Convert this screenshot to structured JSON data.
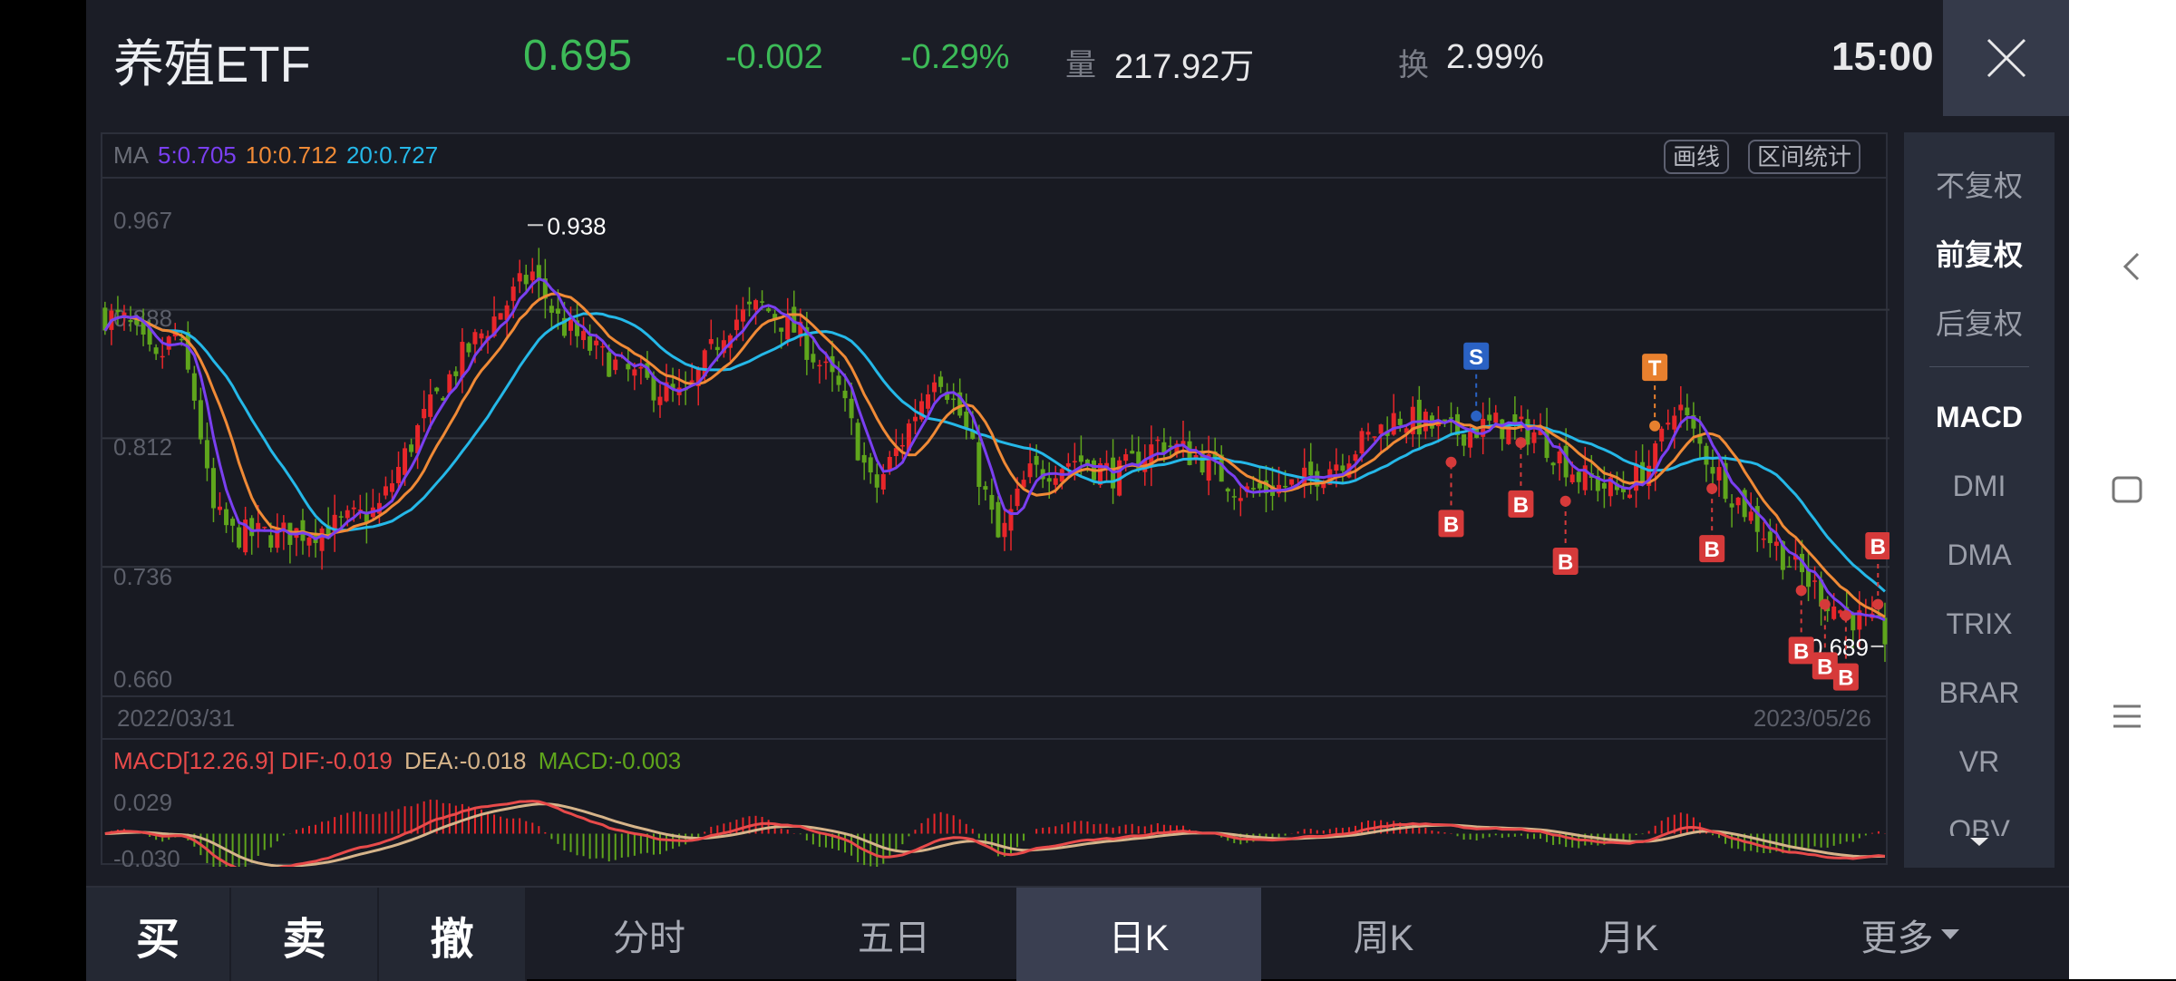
{
  "header": {
    "title": "养殖ETF",
    "price": "0.695",
    "change": "-0.002",
    "change_pct": "-0.29%",
    "volume_label": "量",
    "volume": "217.92万",
    "turnover_label": "换",
    "turnover": "2.99%",
    "time": "15:00",
    "close_icon": "close-icon"
  },
  "colors": {
    "up": "#e8262a",
    "down": "#5fa51c",
    "ma5": "#7a3ff0",
    "ma10": "#f08a36",
    "ma20": "#25b8e8",
    "dif": "#e84a4a",
    "dea": "#d6b48a",
    "macd": "#5fa51c",
    "marker_b": "#d63a3a",
    "marker_s": "#2a62c4",
    "marker_t": "#e8802e"
  },
  "chart": {
    "ma": {
      "label": "MA",
      "ma5": "5:0.705",
      "ma10": "10:0.712",
      "ma20": "20:0.727"
    },
    "tools": {
      "draw": "画线",
      "range_stats": "区间统计"
    },
    "y_ticks": [
      "0.967",
      "0.888",
      "0.812",
      "0.736",
      "0.660"
    ],
    "high_label": "0.938",
    "low_label": "0.689",
    "start_date": "2022/03/31",
    "end_date": "2023/05/26",
    "markers": [
      "S",
      "T",
      "B",
      "B",
      "B",
      "B",
      "B",
      "B",
      "B",
      "B"
    ],
    "macd": {
      "label": "MACD[12.26.9]",
      "dif": "DIF:-0.019",
      "dea": "DEA:-0.018",
      "macd": "MACD:-0.003",
      "y_ticks": [
        "0.029",
        "-0.030"
      ]
    }
  },
  "side": {
    "adjust": [
      "不复权",
      "前复权",
      "后复权"
    ],
    "adjust_selected": "前复权",
    "indicators": [
      "MACD",
      "DMI",
      "DMA",
      "TRIX",
      "BRAR",
      "VR",
      "OBV"
    ],
    "indicator_selected": "MACD"
  },
  "bottom": {
    "trade": [
      "买",
      "卖",
      "撤"
    ],
    "periods": [
      "分时",
      "五日",
      "日K",
      "周K",
      "月K",
      "更多"
    ],
    "selected": "日K"
  }
}
